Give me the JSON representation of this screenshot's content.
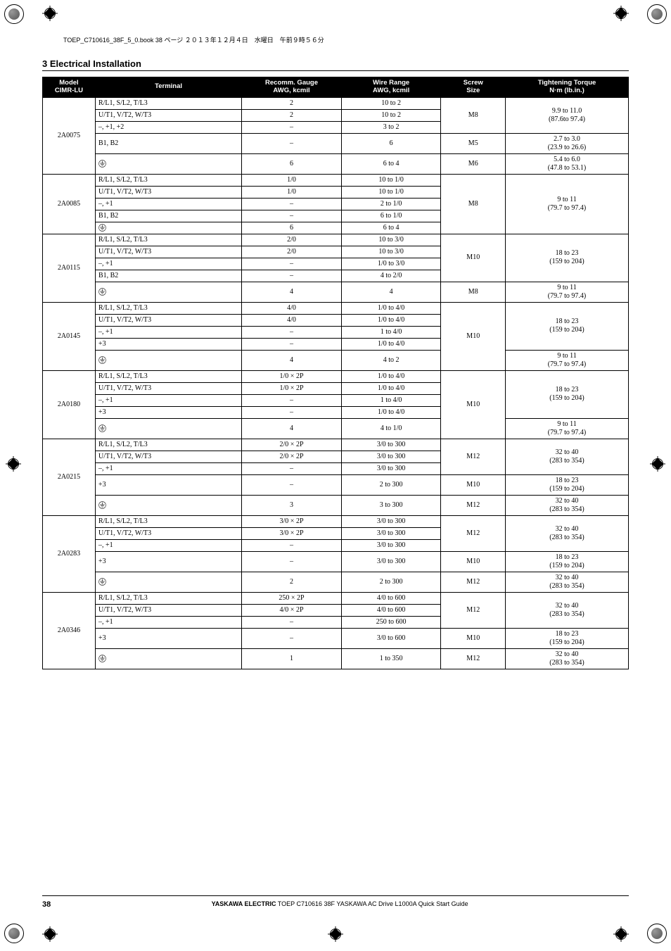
{
  "header_runner": "TOEP_C710616_38F_5_0.book  38 ページ  ２０１３年１２月４日　水曜日　午前９時５６分",
  "section_title": "3  Electrical Installation",
  "columns": {
    "model": "Model\nCIMR-LU",
    "terminal": "Terminal",
    "gauge": "Recomm. Gauge\nAWG, kcmil",
    "range": "Wire Range\nAWG, kcmil",
    "screw": "Screw\nSize",
    "torque": "Tightening Torque\nN·m (lb.in.)"
  },
  "groundSymbol": "⏚",
  "groups": [
    {
      "model": "2A0075",
      "rows": [
        {
          "terminal": "R/L1, S/L2, T/L3",
          "gauge": "2",
          "range": "10 to 2",
          "screw": "M8",
          "screwSpan": 3,
          "torque": "9.9 to 11.0\n(87.6to 97.4)",
          "torqueSpan": 3
        },
        {
          "terminal": "U/T1, V/T2, W/T3",
          "gauge": "2",
          "range": "10 to 2"
        },
        {
          "terminal": "–, +1, +2",
          "gauge": "–",
          "range": "3 to 2"
        },
        {
          "terminal": "B1, B2",
          "gauge": "–",
          "range": "6",
          "screw": "M5",
          "torque": "2.7 to 3.0\n(23.9 to 26.6)",
          "tall": true
        },
        {
          "terminal": "GROUND",
          "gauge": "6",
          "range": "6 to 4",
          "screw": "M6",
          "torque": "5.4 to 6.0\n(47.8 to 53.1)",
          "tall": true
        }
      ]
    },
    {
      "model": "2A0085",
      "rows": [
        {
          "terminal": "R/L1, S/L2, T/L3",
          "gauge": "1/0",
          "range": "10 to 1/0",
          "screw": "M8",
          "screwSpan": 5,
          "torque": "9 to 11\n(79.7 to 97.4)",
          "torqueSpan": 5
        },
        {
          "terminal": "U/T1, V/T2, W/T3",
          "gauge": "1/0",
          "range": "10 to 1/0"
        },
        {
          "terminal": "–, +1",
          "gauge": "–",
          "range": "2 to 1/0"
        },
        {
          "terminal": "B1, B2",
          "gauge": "–",
          "range": "6 to 1/0"
        },
        {
          "terminal": "GROUND",
          "gauge": "6",
          "range": "6 to 4"
        }
      ]
    },
    {
      "model": "2A0115",
      "rows": [
        {
          "terminal": "R/L1, S/L2, T/L3",
          "gauge": "2/0",
          "range": "10 to 3/0",
          "screw": "M10",
          "screwSpan": 4,
          "torque": "18 to 23\n(159 to 204)",
          "torqueSpan": 4
        },
        {
          "terminal": "U/T1, V/T2, W/T3",
          "gauge": "2/0",
          "range": "10 to 3/0"
        },
        {
          "terminal": "–, +1",
          "gauge": "–",
          "range": "1/0 to 3/0"
        },
        {
          "terminal": "B1, B2",
          "gauge": "–",
          "range": "4 to 2/0"
        },
        {
          "terminal": "GROUND",
          "gauge": "4",
          "range": "4",
          "screw": "M8",
          "torque": "9 to 11\n(79.7 to 97.4)",
          "tall": true
        }
      ]
    },
    {
      "model": "2A0145",
      "rows": [
        {
          "terminal": "R/L1, S/L2, T/L3",
          "gauge": "4/0",
          "range": "1/0 to 4/0",
          "screw": "M10",
          "screwSpan": 5,
          "torque": "18 to 23\n(159 to 204)",
          "torqueSpan": 4
        },
        {
          "terminal": "U/T1, V/T2, W/T3",
          "gauge": "4/0",
          "range": "1/0 to 4/0"
        },
        {
          "terminal": "–, +1",
          "gauge": "–",
          "range": "1 to 4/0"
        },
        {
          "terminal": "+3",
          "gauge": "–",
          "range": "1/0 to 4/0"
        },
        {
          "terminal": "GROUND",
          "gauge": "4",
          "range": "4 to 2",
          "torque": "9 to 11\n(79.7 to 97.4)",
          "tall": true
        }
      ]
    },
    {
      "model": "2A0180",
      "rows": [
        {
          "terminal": "R/L1, S/L2, T/L3",
          "gauge": "1/0 × 2P",
          "range": "1/0 to 4/0",
          "screw": "M10",
          "screwSpan": 5,
          "torque": "18 to 23\n(159 to 204)",
          "torqueSpan": 4
        },
        {
          "terminal": "U/T1, V/T2, W/T3",
          "gauge": "1/0 × 2P",
          "range": "1/0 to 4/0"
        },
        {
          "terminal": "–, +1",
          "gauge": "–",
          "range": "1 to 4/0"
        },
        {
          "terminal": "+3",
          "gauge": "–",
          "range": "1/0 to 4/0"
        },
        {
          "terminal": "GROUND",
          "gauge": "4",
          "range": "4 to 1/0",
          "torque": "9 to 11\n(79.7 to 97.4)",
          "tall": true
        }
      ]
    },
    {
      "model": "2A0215",
      "rows": [
        {
          "terminal": "R/L1, S/L2, T/L3",
          "gauge": "2/0 × 2P",
          "range": "3/0 to 300",
          "screw": "M12",
          "screwSpan": 3,
          "torque": "32 to 40\n(283 to 354)",
          "torqueSpan": 3
        },
        {
          "terminal": "U/T1, V/T2, W/T3",
          "gauge": "2/0 × 2P",
          "range": "3/0 to 300"
        },
        {
          "terminal": "–, +1",
          "gauge": "–",
          "range": "3/0 to 300"
        },
        {
          "terminal": "+3",
          "gauge": "–",
          "range": "2 to 300",
          "screw": "M10",
          "torque": "18 to 23\n(159 to 204)",
          "tall": true
        },
        {
          "terminal": "GROUND",
          "gauge": "3",
          "range": "3 to 300",
          "screw": "M12",
          "torque": "32 to 40\n(283 to 354)",
          "tall": true
        }
      ]
    },
    {
      "model": "2A0283",
      "rows": [
        {
          "terminal": "R/L1, S/L2, T/L3",
          "gauge": "3/0 × 2P",
          "range": "3/0 to 300",
          "screw": "M12",
          "screwSpan": 3,
          "torque": "32 to 40\n(283 to 354)",
          "torqueSpan": 3
        },
        {
          "terminal": "U/T1, V/T2, W/T3",
          "gauge": "3/0 × 2P",
          "range": "3/0 to 300"
        },
        {
          "terminal": "–, +1",
          "gauge": "–",
          "range": "3/0 to 300"
        },
        {
          "terminal": "+3",
          "gauge": "–",
          "range": "3/0 to 300",
          "screw": "M10",
          "torque": "18 to 23\n(159 to 204)",
          "tall": true
        },
        {
          "terminal": "GROUND",
          "gauge": "2",
          "range": "2 to 300",
          "screw": "M12",
          "torque": "32 to 40\n(283 to 354)",
          "tall": true
        }
      ]
    },
    {
      "model": "2A0346",
      "rows": [
        {
          "terminal": "R/L1, S/L2, T/L3",
          "gauge": "250 × 2P",
          "range": "4/0 to 600",
          "screw": "M12",
          "screwSpan": 3,
          "torque": "32 to 40\n(283 to 354)",
          "torqueSpan": 3
        },
        {
          "terminal": "U/T1, V/T2, W/T3",
          "gauge": "4/0 × 2P",
          "range": "4/0 to 600"
        },
        {
          "terminal": "–, +1",
          "gauge": "–",
          "range": "250 to 600"
        },
        {
          "terminal": "+3",
          "gauge": "–",
          "range": "3/0 to 600",
          "screw": "M10",
          "torque": "18 to 23\n(159 to 204)",
          "tall": true
        },
        {
          "terminal": "GROUND",
          "gauge": "1",
          "range": "1 to 350",
          "screw": "M12",
          "torque": "32 to 40\n(283 to 354)",
          "tall": true
        }
      ]
    }
  ],
  "footer": {
    "page": "38",
    "text_bold": "YASKAWA ELECTRIC",
    "text_rest": " TOEP C710616 38F YASKAWA AC Drive L1000A Quick Start Guide"
  }
}
